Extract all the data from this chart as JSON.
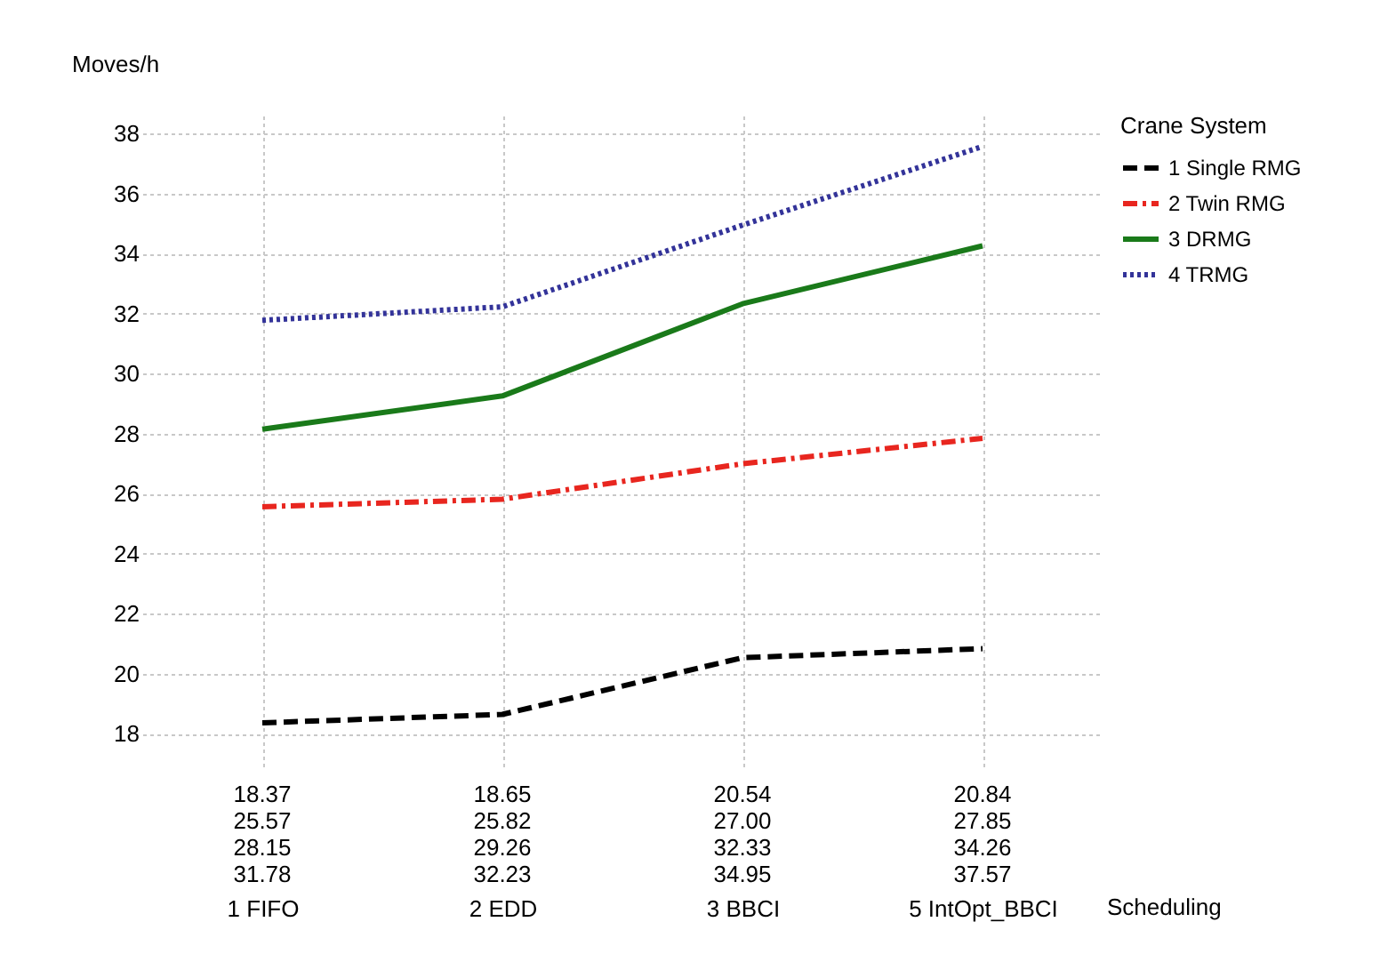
{
  "chart_data": {
    "type": "line",
    "xlabel": "Scheduling",
    "ylabel": "Moves/h",
    "legend_title": "Crane System",
    "categories": [
      "1 FIFO",
      "2 EDD",
      "3 BBCI",
      "5 IntOpt_BBCI"
    ],
    "series": [
      {
        "name": "1 Single RMG",
        "color": "#000000",
        "line_style": "dashed",
        "values": [
          18.37,
          18.65,
          20.54,
          20.84
        ],
        "value_labels": [
          "18.37",
          "18.65",
          "20.54",
          "20.84"
        ]
      },
      {
        "name": "2 Twin RMG",
        "color": "#e8261f",
        "line_style": "dashdot",
        "values": [
          25.57,
          25.82,
          27.0,
          27.85
        ],
        "value_labels": [
          "25.57",
          "25.82",
          "27.00",
          "27.85"
        ]
      },
      {
        "name": "3 DRMG",
        "color": "#1a7a1a",
        "line_style": "solid",
        "values": [
          28.15,
          29.26,
          32.33,
          34.26
        ],
        "value_labels": [
          "28.15",
          "29.26",
          "32.33",
          "34.26"
        ]
      },
      {
        "name": "4 TRMG",
        "color": "#333399",
        "line_style": "dotted",
        "values": [
          31.78,
          32.23,
          34.95,
          37.57
        ],
        "value_labels": [
          "31.78",
          "32.23",
          "34.95",
          "37.57"
        ]
      }
    ],
    "ylim": [
      16.8,
      38.6
    ],
    "yticks": [
      18,
      20,
      22,
      24,
      26,
      28,
      30,
      32,
      34,
      36,
      38
    ],
    "grid": true,
    "legend": "top right"
  }
}
